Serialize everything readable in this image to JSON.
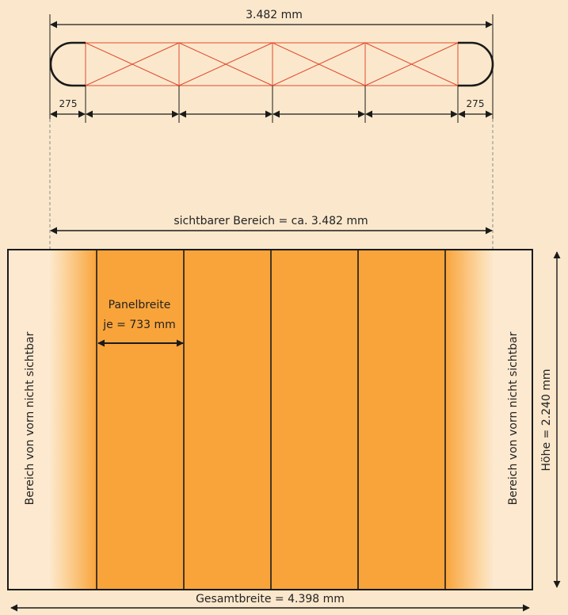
{
  "colors": {
    "background": "#fbe8cc",
    "panel_fill": "#f9a43a",
    "truss_red": "#e04a2e",
    "outline": "#1a1a1a",
    "dashed_guide": "#8a8a8a",
    "hidden_area_fill": "#fde9cf"
  },
  "top_view": {
    "overall_label": "3.482 mm",
    "left_end_label": "275",
    "right_end_label": "275",
    "segment_count": 5
  },
  "front_view": {
    "visible_area_label": "sichtbarer Bereich = ca. 3.482 mm",
    "panel_width_line1": "Panelbreite",
    "panel_width_line2": "je = 733 mm",
    "hidden_left_label": "Bereich von vorn nicht sichtbar",
    "hidden_right_label": "Bereich von vorn nicht sichtbar",
    "height_label": "Höhe = 2.240 mm",
    "total_width_label": "Gesamtbreite = 4.398 mm",
    "panel_count": 5
  }
}
